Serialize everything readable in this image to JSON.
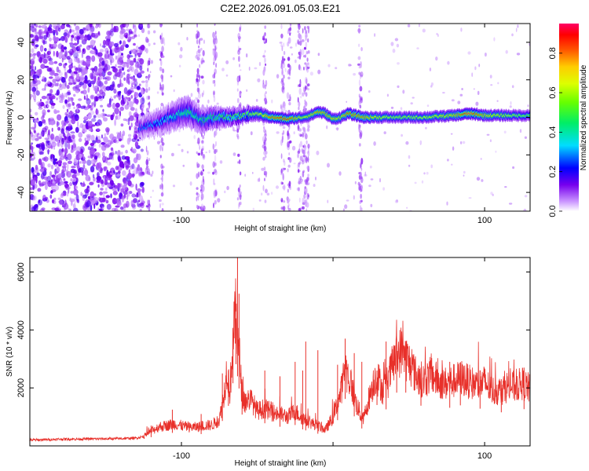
{
  "title": "C2E2.2026.091.05.03.E21",
  "chart_data": [
    {
      "type": "heatmap",
      "name": "spectrogram",
      "xlabel": "Height of straight line (km)",
      "ylabel": "Frequency (Hz)",
      "xlim": [
        -200,
        130
      ],
      "ylim": [
        -50,
        50
      ],
      "x_ticks": [
        -100,
        0,
        100
      ],
      "x_tick_labels": [
        "-100",
        "",
        "100"
      ],
      "y_ticks": [
        -40,
        -20,
        0,
        20,
        40
      ],
      "y_tick_labels": [
        "-40",
        "-20",
        "0",
        "20",
        "40"
      ],
      "colorbar": {
        "label": "Normalized spectral amplitude",
        "range": [
          0,
          0.95
        ],
        "ticks": [
          0.0,
          0.2,
          0.4,
          0.6,
          0.8
        ],
        "tick_labels": [
          "0.0",
          "0.2",
          "0.4",
          "0.6",
          "0.8"
        ],
        "colors": [
          "#ffffff",
          "#cc99ff",
          "#7700ee",
          "#0000ff",
          "#00ddff",
          "#00ff44",
          "#ccff00",
          "#ffff00",
          "#ff8800",
          "#ff0000",
          "#ff0066"
        ]
      },
      "noise_region_x": [
        -200,
        -125
      ],
      "signal_ridge": {
        "x": [
          -128,
          -120,
          -110,
          -100,
          -95,
          -90,
          -85,
          -80,
          -70,
          -60,
          -50,
          -40,
          -30,
          -20,
          -15,
          -10,
          -5,
          0,
          5,
          10,
          20,
          40,
          60,
          80,
          90,
          100,
          110,
          120,
          130
        ],
        "freq": [
          -6,
          -4,
          -1,
          2,
          3,
          0,
          -2,
          0,
          0,
          1,
          2,
          0,
          -1,
          0,
          1,
          3,
          2,
          -1,
          0,
          2,
          0,
          0,
          0,
          1,
          2,
          1,
          1,
          1,
          1
        ],
        "amplitude": [
          0.25,
          0.3,
          0.35,
          0.4,
          0.45,
          0.4,
          0.45,
          0.45,
          0.5,
          0.55,
          0.6,
          0.85,
          0.9,
          0.65,
          0.7,
          0.8,
          0.75,
          0.75,
          0.7,
          0.85,
          0.8,
          0.6,
          0.65,
          0.75,
          0.95,
          0.75,
          0.7,
          0.6,
          0.55
        ],
        "width_hz": [
          6,
          6,
          7,
          8,
          8,
          7,
          6,
          6,
          5,
          4,
          4,
          3,
          3,
          3,
          3,
          3,
          3,
          3,
          3,
          3,
          3,
          3,
          3,
          3,
          3,
          3,
          3,
          3,
          3
        ]
      },
      "vertical_streaks_x": [
        -122,
        -113,
        -89,
        -86,
        -78,
        -62,
        -45,
        -33,
        -29,
        -22,
        -19,
        -17,
        18
      ]
    },
    {
      "type": "line",
      "name": "snr",
      "xlabel": "Height of straight line (km)",
      "ylabel": "SNR (10 * v/v)",
      "xlim": [
        -200,
        130
      ],
      "ylim": [
        0,
        6500
      ],
      "x_ticks": [
        -100,
        0,
        100
      ],
      "x_tick_labels": [
        "-100",
        "",
        "100"
      ],
      "y_ticks": [
        2000,
        4000,
        6000
      ],
      "y_tick_labels": [
        "2000",
        "4000",
        "6000"
      ],
      "series": [
        {
          "name": "SNR",
          "color": "#e8302a",
          "envelope_x": [
            -200,
            -180,
            -160,
            -140,
            -130,
            -125,
            -120,
            -115,
            -110,
            -105,
            -100,
            -95,
            -90,
            -85,
            -80,
            -75,
            -72,
            -70,
            -68,
            -66,
            -64,
            -62,
            -60,
            -58,
            -55,
            -52,
            -50,
            -45,
            -40,
            -35,
            -30,
            -25,
            -20,
            -15,
            -10,
            -5,
            0,
            5,
            8,
            10,
            12,
            15,
            18,
            20,
            22,
            25,
            28,
            30,
            33,
            36,
            40,
            45,
            50,
            55,
            60,
            65,
            70,
            75,
            80,
            85,
            90,
            95,
            100,
            105,
            110,
            115,
            120,
            125,
            130
          ],
          "envelope_y": [
            200,
            230,
            240,
            250,
            270,
            320,
            500,
            650,
            700,
            760,
            700,
            640,
            650,
            700,
            720,
            900,
            1700,
            2700,
            1900,
            3600,
            4700,
            3300,
            1800,
            1500,
            1650,
            1400,
            1200,
            1300,
            1150,
            1100,
            1000,
            1200,
            950,
            800,
            700,
            550,
            1000,
            1800,
            2700,
            2400,
            2100,
            1500,
            1100,
            900,
            1300,
            1900,
            2400,
            2300,
            1900,
            2200,
            2900,
            3300,
            2900,
            2400,
            2250,
            2450,
            2200,
            2150,
            2250,
            2350,
            2200,
            2100,
            2200,
            1900,
            1900,
            2050,
            2050,
            2150,
            1950
          ],
          "spikes": [
            {
              "x": -120,
              "y": 700
            },
            {
              "x": -106,
              "y": 1250
            },
            {
              "x": -87,
              "y": 1100
            },
            {
              "x": -73,
              "y": 2500
            },
            {
              "x": -69,
              "y": 2600
            },
            {
              "x": -66,
              "y": 3700
            },
            {
              "x": -64,
              "y": 4400
            },
            {
              "x": -63,
              "y": 6500
            },
            {
              "x": -62,
              "y": 5250
            },
            {
              "x": -60,
              "y": 2200
            },
            {
              "x": -45,
              "y": 2600
            },
            {
              "x": -35,
              "y": 2400
            },
            {
              "x": -25,
              "y": 2900
            },
            {
              "x": -20,
              "y": 2600
            },
            {
              "x": -18,
              "y": 3600
            },
            {
              "x": -10,
              "y": 3300
            },
            {
              "x": 3,
              "y": 2800
            },
            {
              "x": 8,
              "y": 3700
            },
            {
              "x": 14,
              "y": 3200
            },
            {
              "x": 19,
              "y": 2900
            },
            {
              "x": 29,
              "y": 2600
            },
            {
              "x": 35,
              "y": 3600
            },
            {
              "x": 42,
              "y": 3700
            },
            {
              "x": 48,
              "y": 3300
            },
            {
              "x": 58,
              "y": 2700
            },
            {
              "x": 77,
              "y": 2900
            },
            {
              "x": 84,
              "y": 2600
            },
            {
              "x": 97,
              "y": 2600
            },
            {
              "x": 111,
              "y": 2300
            },
            {
              "x": 126,
              "y": 2700
            }
          ]
        }
      ]
    }
  ]
}
